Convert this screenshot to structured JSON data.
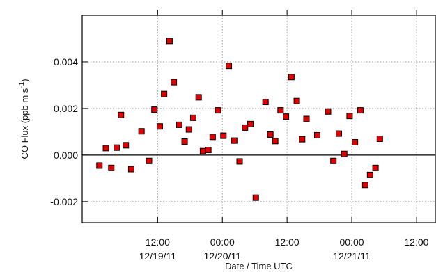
{
  "chart_data": {
    "type": "scatter",
    "title": "",
    "xlabel": "Date / Time UTC",
    "ylabel": "CO Flux (ppb m s",
    "ylabel_sup": "-1",
    "ylabel_tail": ")",
    "ylim": [
      -0.0029,
      0.006
    ],
    "xlim_hours": [
      -14.0,
      51.5
    ],
    "x_units": "hours since 12/19/11 00:00 UTC",
    "y_ticks": [
      {
        "value": -0.002,
        "label": "-0.002"
      },
      {
        "value": 0.0,
        "label": "0.000"
      },
      {
        "value": 0.002,
        "label": "0.002"
      },
      {
        "value": 0.004,
        "label": "0.004"
      }
    ],
    "x_ticks": [
      {
        "hour": 0,
        "time": "12:00",
        "date": "12/19/11"
      },
      {
        "hour": 12,
        "time": "00:00",
        "date": "12/20/11"
      },
      {
        "hour": 24,
        "time": "12:00",
        "date": ""
      },
      {
        "hour": 36,
        "time": "00:00",
        "date": "12/21/11"
      },
      {
        "hour": 48,
        "time": "12:00",
        "date": ""
      }
    ],
    "grid": true,
    "zero_line": true,
    "marker": {
      "shape": "square",
      "fill": "#e00000",
      "stroke": "#000000"
    },
    "points": [
      [
        -10.8,
        -0.00045
      ],
      [
        -9.6,
        0.0003
      ],
      [
        -8.6,
        -0.00055
      ],
      [
        -7.6,
        0.00032
      ],
      [
        -6.8,
        0.00172
      ],
      [
        -5.9,
        0.00042
      ],
      [
        -4.9,
        -0.0006
      ],
      [
        -3.0,
        0.00102
      ],
      [
        -1.6,
        -0.00025
      ],
      [
        -0.6,
        0.00195
      ],
      [
        0.4,
        0.00123
      ],
      [
        1.2,
        0.00262
      ],
      [
        2.2,
        0.0049
      ],
      [
        3.0,
        0.00313
      ],
      [
        4.0,
        0.0013
      ],
      [
        5.0,
        0.00058
      ],
      [
        5.8,
        0.0011
      ],
      [
        6.6,
        0.0016
      ],
      [
        7.6,
        0.00248
      ],
      [
        8.4,
        0.00017
      ],
      [
        9.4,
        0.00022
      ],
      [
        10.2,
        0.00078
      ],
      [
        11.2,
        0.00192
      ],
      [
        12.2,
        0.00083
      ],
      [
        13.2,
        0.00383
      ],
      [
        14.2,
        0.00062
      ],
      [
        15.2,
        -0.00027
      ],
      [
        16.2,
        0.00118
      ],
      [
        17.2,
        0.00133
      ],
      [
        18.2,
        -0.00183
      ],
      [
        20.0,
        0.00228
      ],
      [
        20.9,
        0.00088
      ],
      [
        21.8,
        0.0006
      ],
      [
        22.8,
        0.00192
      ],
      [
        23.8,
        0.00165
      ],
      [
        24.8,
        0.00335
      ],
      [
        25.8,
        0.00232
      ],
      [
        26.8,
        0.00068
      ],
      [
        27.6,
        0.00155
      ],
      [
        29.6,
        0.00085
      ],
      [
        31.6,
        0.00187
      ],
      [
        32.6,
        -0.00025
      ],
      [
        33.6,
        0.00092
      ],
      [
        34.6,
        5e-05
      ],
      [
        35.6,
        0.00168
      ],
      [
        36.6,
        0.00055
      ],
      [
        37.6,
        0.00192
      ],
      [
        38.5,
        -0.00128
      ],
      [
        39.4,
        -0.00085
      ],
      [
        40.4,
        -0.00055
      ],
      [
        41.2,
        0.0007
      ]
    ]
  }
}
